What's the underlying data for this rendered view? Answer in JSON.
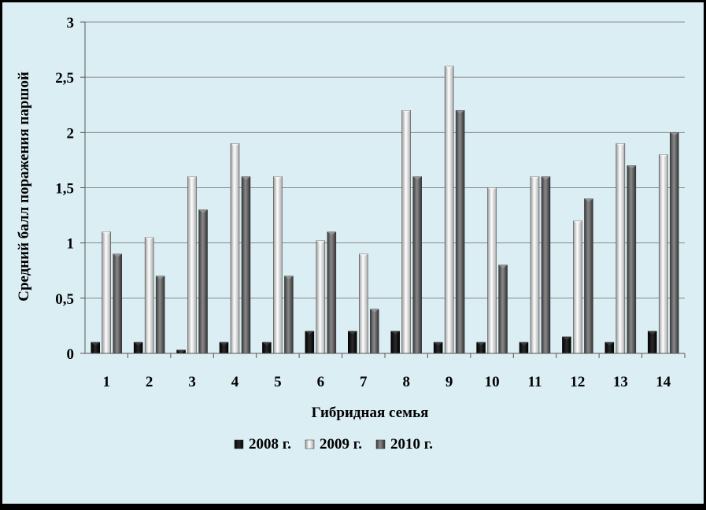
{
  "chart_data": {
    "type": "bar",
    "title": "",
    "xlabel": "Гибридная семья",
    "ylabel": "Средний балл поражения паршой",
    "categories": [
      "1",
      "2",
      "3",
      "4",
      "5",
      "6",
      "7",
      "8",
      "9",
      "10",
      "11",
      "12",
      "13",
      "14"
    ],
    "series": [
      {
        "name": "2008 г.",
        "color": "#111111",
        "values": [
          0.1,
          0.1,
          0.03,
          0.1,
          0.1,
          0.2,
          0.2,
          0.2,
          0.1,
          0.1,
          0.1,
          0.15,
          0.1,
          0.2
        ]
      },
      {
        "name": "2009 г.",
        "color": "#d8d8d8",
        "values": [
          1.1,
          1.05,
          1.6,
          1.9,
          1.6,
          1.02,
          0.9,
          2.2,
          2.6,
          1.5,
          1.6,
          1.2,
          1.9,
          1.8
        ]
      },
      {
        "name": "2010 г.",
        "color": "#6a6a6a",
        "values": [
          0.9,
          0.7,
          1.3,
          1.6,
          0.7,
          1.1,
          0.4,
          1.6,
          2.2,
          0.8,
          1.6,
          1.4,
          1.7,
          2.0
        ]
      }
    ],
    "ylim": [
      0,
      3
    ],
    "yticks": [
      "0",
      "0,5",
      "1",
      "1,5",
      "2",
      "2,5",
      "3"
    ],
    "grid": true,
    "legend_position": "bottom",
    "background_color": "#dbeef4",
    "frame_color": "#000000"
  }
}
